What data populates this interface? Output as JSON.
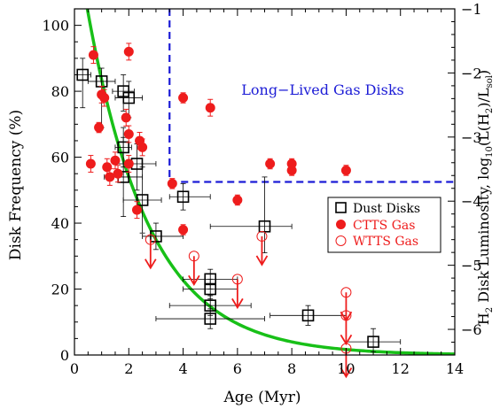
{
  "chart_data": {
    "type": "scatter",
    "title": "",
    "xlabel": "Age (Myr)",
    "ylabel": "Disk Frequency (%)",
    "y2label": {
      "lead": "H",
      "lead_sub": "2",
      "mid": " Disk Luminosity, log",
      "log_sub": "10",
      "open": "(L(H",
      "h_sub": "2",
      "close": ")/L",
      "sol_sub": "sol",
      "end": ")"
    },
    "xlim": [
      0,
      14
    ],
    "ylim": [
      0,
      105
    ],
    "y2lim": [
      -6.4,
      -1
    ],
    "xticks": [
      "0",
      "2",
      "4",
      "6",
      "8",
      "10",
      "12",
      "14"
    ],
    "yticks": [
      "0",
      "20",
      "40",
      "60",
      "80",
      "100"
    ],
    "y2ticks": [
      "-6",
      "-5",
      "-4",
      "-3",
      "-2",
      "-1"
    ],
    "legend_position": "right",
    "annotation": {
      "text": "Long−Lived Gas Disks",
      "x": 7.5,
      "y": 83
    },
    "region_boundary": {
      "x": 3.5,
      "y2": -3.7
    },
    "fit_curve": {
      "form": "exponential decay",
      "amplitude": 129,
      "tau_myr": 2.3
    },
    "series": [
      {
        "name": "Dust Disks",
        "kind": "dust",
        "points": [
          {
            "x": 0.3,
            "y": 85,
            "xerr": [
              0.3,
              0.3
            ],
            "yerr": [
              10,
              5
            ]
          },
          {
            "x": 1.0,
            "y": 83,
            "xerr": [
              0.5,
              0.5
            ],
            "yerr": [
              14,
              4
            ]
          },
          {
            "x": 1.8,
            "y": 80,
            "xerr": [
              0.4,
              0.4
            ],
            "yerr": [
              6,
              5
            ]
          },
          {
            "x": 2.0,
            "y": 78,
            "xerr": [
              0.5,
              0.5
            ],
            "yerr": [
              6,
              5
            ]
          },
          {
            "x": 1.8,
            "y": 63,
            "xerr": [
              0.3,
              0.3
            ],
            "yerr": [
              6,
              6
            ]
          },
          {
            "x": 2.3,
            "y": 58,
            "xerr": [
              0.8,
              0.7
            ],
            "yerr": [
              8,
              6
            ]
          },
          {
            "x": 1.8,
            "y": 54,
            "xerr": [
              0.7,
              0.7
            ],
            "yerr": [
              12,
              12
            ]
          },
          {
            "x": 2.5,
            "y": 47,
            "xerr": [
              0.7,
              0.7
            ],
            "yerr": [
              10,
              10
            ]
          },
          {
            "x": 4.0,
            "y": 48,
            "xerr": [
              0.5,
              1.0
            ],
            "yerr": [
              4,
              4
            ]
          },
          {
            "x": 3.0,
            "y": 36,
            "xerr": [
              0.5,
              1.0
            ],
            "yerr": [
              4,
              4
            ]
          },
          {
            "x": 7.0,
            "y": 39,
            "xerr": [
              2.0,
              1.0
            ],
            "yerr": [
              8,
              15
            ]
          },
          {
            "x": 5.0,
            "y": 23,
            "xerr": [
              1.0,
              1.0
            ],
            "yerr": [
              3,
              3
            ]
          },
          {
            "x": 5.0,
            "y": 20,
            "xerr": [
              1.0,
              1.0
            ],
            "yerr": [
              3,
              3
            ]
          },
          {
            "x": 5.0,
            "y": 15,
            "xerr": [
              1.5,
              1.5
            ],
            "yerr": [
              3,
              3
            ]
          },
          {
            "x": 5.0,
            "y": 11,
            "xerr": [
              2.0,
              2.0
            ],
            "yerr": [
              3,
              3
            ]
          },
          {
            "x": 8.6,
            "y": 12,
            "xerr": [
              1.4,
              1.4
            ],
            "yerr": [
              3,
              3
            ]
          },
          {
            "x": 11.0,
            "y": 4,
            "xerr": [
              1.0,
              1.0
            ],
            "yerr": [
              3,
              4
            ]
          }
        ]
      },
      {
        "name": "CTTS Gas",
        "kind": "ctts",
        "points": [
          {
            "x": 0.7,
            "y": 91,
            "yerr": [
              2,
              2
            ]
          },
          {
            "x": 2.0,
            "y": 92,
            "yerr": [
              2,
              2
            ]
          },
          {
            "x": 1.0,
            "y": 79,
            "yerr": [
              2,
              2
            ]
          },
          {
            "x": 1.1,
            "y": 78,
            "yerr": [
              2,
              2
            ]
          },
          {
            "x": 0.9,
            "y": 69,
            "yerr": [
              1,
              1
            ]
          },
          {
            "x": 1.9,
            "y": 72,
            "yerr": [
              2,
              2
            ]
          },
          {
            "x": 2.0,
            "y": 67,
            "yerr": [
              2,
              2
            ]
          },
          {
            "x": 0.6,
            "y": 58,
            "yerr": [
              2,
              2
            ]
          },
          {
            "x": 1.2,
            "y": 57,
            "yerr": [
              2,
              2
            ]
          },
          {
            "x": 1.5,
            "y": 59,
            "yerr": [
              2,
              2
            ]
          },
          {
            "x": 2.0,
            "y": 58,
            "yerr": [
              2,
              2
            ]
          },
          {
            "x": 2.4,
            "y": 65,
            "yerr": [
              2,
              2
            ]
          },
          {
            "x": 2.5,
            "y": 63,
            "yerr": [
              2,
              2
            ]
          },
          {
            "x": 1.3,
            "y": 54,
            "yerr": [
              2,
              2
            ]
          },
          {
            "x": 1.6,
            "y": 55,
            "yerr": [
              2,
              2
            ]
          },
          {
            "x": 2.3,
            "y": 44,
            "yerr": [
              2,
              2
            ]
          },
          {
            "x": 3.6,
            "y": 52,
            "yerr": [
              1,
              1
            ]
          },
          {
            "x": 4.0,
            "y": 78,
            "yerr": [
              1,
              1
            ]
          },
          {
            "x": 5.0,
            "y": 75,
            "yerr": [
              2,
              2
            ]
          },
          {
            "x": 6.0,
            "y": 47,
            "yerr": [
              1,
              1
            ]
          },
          {
            "x": 4.0,
            "y": 38,
            "yerr": [
              1,
              1
            ]
          },
          {
            "x": 7.2,
            "y": 58,
            "yerr": [
              1,
              1
            ]
          },
          {
            "x": 8.0,
            "y": 58,
            "yerr": [
              1,
              1
            ]
          },
          {
            "x": 8.0,
            "y": 56,
            "yerr": [
              1,
              1
            ]
          },
          {
            "x": 10.0,
            "y": 56,
            "yerr": [
              1,
              1
            ]
          }
        ]
      },
      {
        "name": "WTTS Gas",
        "kind": "wtts",
        "points": [
          {
            "x": 2.8,
            "y": 35,
            "upper_limit": true
          },
          {
            "x": 4.4,
            "y": 30,
            "upper_limit": true
          },
          {
            "x": 6.0,
            "y": 23,
            "upper_limit": true
          },
          {
            "x": 6.9,
            "y": 36,
            "upper_limit": true
          },
          {
            "x": 10.0,
            "y": 19,
            "upper_limit": true
          },
          {
            "x": 10.0,
            "y": 12,
            "upper_limit": true
          },
          {
            "x": 10.0,
            "y": 2,
            "upper_limit": true
          }
        ]
      }
    ]
  },
  "colors": {
    "dust": "#000000",
    "gas": "#ee1c1c",
    "fit": "#18c018",
    "region": "#1c1cd6",
    "annotation": "#1c1cd6",
    "axis": "#000000"
  }
}
